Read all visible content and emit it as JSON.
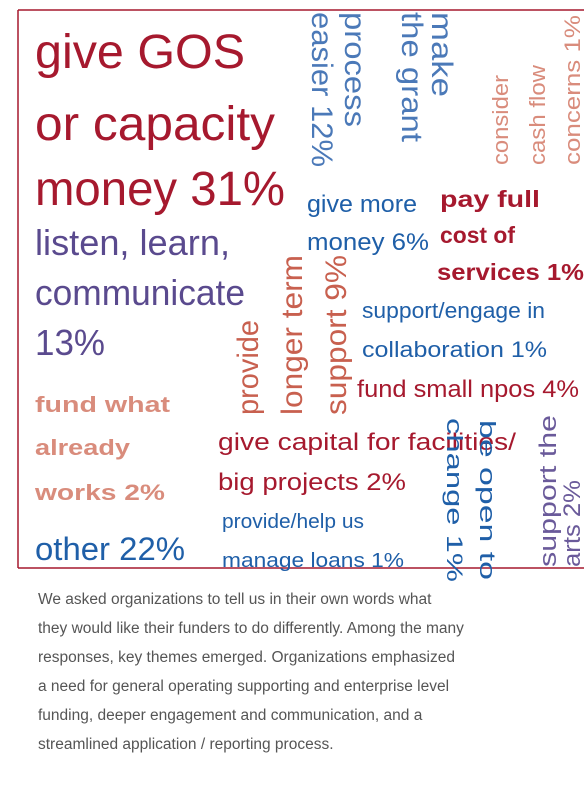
{
  "word_cloud": {
    "items": [
      {
        "lines": [
          "give GOS",
          "or capacity",
          "money 31%"
        ],
        "color": "#a6192e"
      },
      {
        "lines": [
          "listen, learn,",
          "communicate",
          "13%"
        ],
        "color": "#5a4a8e"
      },
      {
        "lines": [
          "fund what",
          "already",
          "works 2%"
        ],
        "color": "#d98c7c"
      },
      {
        "lines": [
          "other 22%"
        ],
        "color": "#1f5fa8"
      },
      {
        "lines": [
          "make",
          "the grant",
          "process",
          "easier 12%"
        ],
        "color": "#4b79b8"
      },
      {
        "lines": [
          "consider",
          "cash flow",
          "concerns 1%"
        ],
        "color": "#d98c7c"
      },
      {
        "lines": [
          "give more",
          "money 6%"
        ],
        "color": "#1f5fa8"
      },
      {
        "lines": [
          "pay full",
          "cost of",
          "services 1%"
        ],
        "color": "#a6192e"
      },
      {
        "lines": [
          "provide",
          "longer term",
          "support 9%"
        ],
        "color": "#c8604f"
      },
      {
        "lines": [
          "support/engage in",
          "collaboration 1%"
        ],
        "color": "#1f5fa8"
      },
      {
        "lines": [
          "fund small npos 4%"
        ],
        "color": "#a6192e"
      },
      {
        "lines": [
          "give capital for facilities/",
          "big projects 2%"
        ],
        "color": "#a6192e"
      },
      {
        "lines": [
          "provide/help us",
          "manage loans 1%"
        ],
        "color": "#1f5fa8"
      },
      {
        "lines": [
          "be open to",
          "change 1%"
        ],
        "color": "#1f5fa8"
      },
      {
        "lines": [
          "support the",
          "arts 2%"
        ],
        "color": "#6a5a9a"
      }
    ]
  },
  "caption": {
    "lines": [
      "We asked organizations to tell us in their own words what",
      "they would like their funders to do differently. Among the many",
      "responses, key themes emerged. Organizations emphasized",
      "a need for general operating supporting and enterprise level",
      "funding, deeper engagement and communication, and a",
      "streamlined application / reporting process."
    ]
  }
}
